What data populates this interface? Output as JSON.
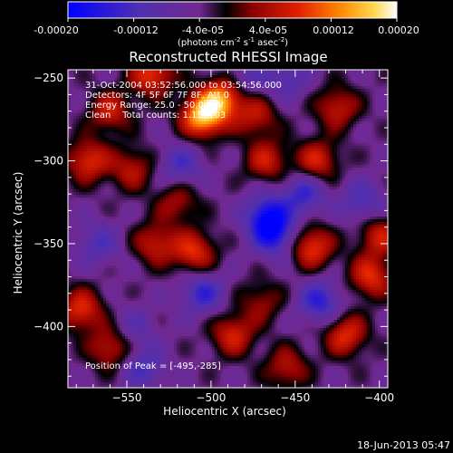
{
  "colorbar": {
    "ticks": [
      "-0.00020",
      "-0.00012",
      "-4.0e-05",
      "4.0e-05",
      "0.00012",
      "0.00020"
    ],
    "unit": "(photons cm",
    "unit_exp1": "-2",
    "unit_mid": " s",
    "unit_exp2": "-1",
    "unit_tail": " asec",
    "unit_exp3": "-2",
    "unit_close": ")"
  },
  "annotations": {
    "time_range": "31-Oct-2004 03:52:56.000 to 03:54:56.000",
    "detectors": "Detectors: 4F 5F 6F 7F 8F, Att 0",
    "energy": "Energy Range: 25.0 - 50.0 keV",
    "clean": "Clean    Total counts: 1.15e103",
    "peak": "Position of Peak = [-495,-285]"
  },
  "timestamp": "18-Jun-2013 05:47",
  "colors": {
    "background": "#000000",
    "frame": "#ffffff",
    "cmap": [
      "#0000ff",
      "#3a28c8",
      "#5a3fa8",
      "#6a2a8a",
      "#00000a",
      "#8a0000",
      "#e02000",
      "#ff7a00",
      "#ffd040",
      "#ffffe8"
    ]
  },
  "chart_data": {
    "type": "heatmap",
    "title": "Reconstructed RHESSI Image",
    "xlabel": "Heliocentric X (arcsec)",
    "ylabel": "Heliocentric Y (arcsec)",
    "xlim": [
      -585,
      -395
    ],
    "ylim": [
      -437,
      -245
    ],
    "xticks": [
      -550,
      -500,
      -450,
      -400
    ],
    "yticks": [
      -250,
      -300,
      -350,
      -400
    ],
    "color_range": [
      -0.0002,
      0.0002
    ],
    "peak_position": [
      -495,
      -285
    ],
    "sources": [
      {
        "x": -505,
        "y": -273,
        "value": 0.0002
      },
      {
        "x": -493,
        "y": -262,
        "value": 0.00016
      },
      {
        "x": -535,
        "y": -248,
        "value": 0.00013
      },
      {
        "x": -560,
        "y": -270,
        "value": 0.0001
      },
      {
        "x": -573,
        "y": -300,
        "value": 0.00012
      },
      {
        "x": -547,
        "y": -305,
        "value": 9e-05
      },
      {
        "x": -577,
        "y": -390,
        "value": 0.00012
      },
      {
        "x": -560,
        "y": -413,
        "value": 0.0001
      },
      {
        "x": -533,
        "y": -350,
        "value": 0.0001
      },
      {
        "x": -510,
        "y": -355,
        "value": 0.00012
      },
      {
        "x": -520,
        "y": -325,
        "value": 8e-05
      },
      {
        "x": -473,
        "y": -273,
        "value": 9e-05
      },
      {
        "x": -467,
        "y": -300,
        "value": 0.0001
      },
      {
        "x": -437,
        "y": -300,
        "value": 0.00011
      },
      {
        "x": -425,
        "y": -268,
        "value": 0.0001
      },
      {
        "x": -440,
        "y": -352,
        "value": 0.00013
      },
      {
        "x": -405,
        "y": -370,
        "value": 0.00012
      },
      {
        "x": -400,
        "y": -345,
        "value": 0.0001
      },
      {
        "x": -487,
        "y": -405,
        "value": 0.00011
      },
      {
        "x": -455,
        "y": -425,
        "value": 9e-05
      },
      {
        "x": -420,
        "y": -405,
        "value": 0.00012
      },
      {
        "x": -470,
        "y": -385,
        "value": 7e-05
      },
      {
        "x": -545,
        "y": -400,
        "value": -5e-05
      },
      {
        "x": -518,
        "y": -303,
        "value": -8e-05
      },
      {
        "x": -505,
        "y": -380,
        "value": -0.0001
      },
      {
        "x": -467,
        "y": -333,
        "value": -0.00013
      },
      {
        "x": -462,
        "y": -345,
        "value": -0.00012
      },
      {
        "x": -445,
        "y": -320,
        "value": -0.0001
      },
      {
        "x": -435,
        "y": -385,
        "value": -0.00011
      },
      {
        "x": -540,
        "y": -425,
        "value": -8e-05
      },
      {
        "x": -480,
        "y": -250,
        "value": -6e-05
      },
      {
        "x": -455,
        "y": -250,
        "value": -7e-05
      },
      {
        "x": -410,
        "y": -325,
        "value": -8e-05
      },
      {
        "x": -567,
        "y": -350,
        "value": -7e-05
      }
    ]
  }
}
